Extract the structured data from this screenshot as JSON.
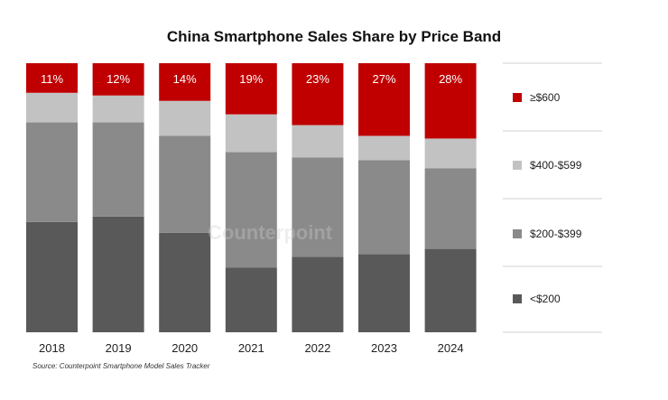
{
  "chart_data": {
    "type": "bar",
    "stacked": true,
    "normalized_100": true,
    "title": "China Smartphone Sales Share by Price Band",
    "xlabel": "",
    "ylabel": "",
    "ylim": [
      0,
      100
    ],
    "categories": [
      "2018",
      "2019",
      "2020",
      "2021",
      "2022",
      "2023",
      "2024"
    ],
    "series": [
      {
        "name": "<$200",
        "color": "#595959",
        "values": [
          41,
          43,
          37,
          24,
          28,
          29,
          31
        ]
      },
      {
        "name": "$200-$399",
        "color": "#8a8a8a",
        "values": [
          37,
          35,
          36,
          43,
          37,
          35,
          30
        ]
      },
      {
        "name": "$400-$599",
        "color": "#c2c2c2",
        "values": [
          11,
          10,
          13,
          14,
          12,
          9,
          11
        ]
      },
      {
        "name": "≥$600",
        "color": "#c00000",
        "values": [
          11,
          12,
          14,
          19,
          23,
          27,
          28
        ]
      }
    ],
    "data_labels": [
      "11%",
      "12%",
      "14%",
      "19%",
      "23%",
      "27%",
      "28%"
    ],
    "legend_position": "right",
    "legend": [
      {
        "label": "≥$600",
        "color": "#c00000"
      },
      {
        "label": "$400-$599",
        "color": "#c2c2c2"
      },
      {
        "label": "$200-$399",
        "color": "#8a8a8a"
      },
      {
        "label": "<$200",
        "color": "#595959"
      }
    ],
    "watermark": "Counterpoint",
    "source": "Source: Counterpoint Smartphone Model Sales Tracker"
  }
}
